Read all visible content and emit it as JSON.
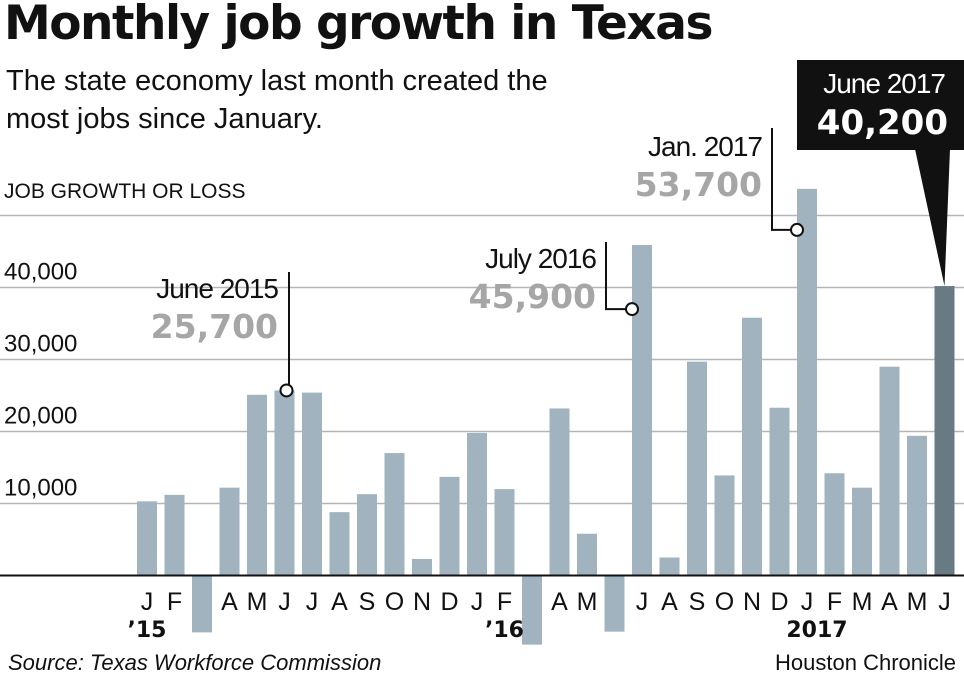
{
  "title": "Monthly job growth in Texas",
  "subtitle": "The state economy last month created the most jobs since January.",
  "source": "Source: Texas Workforce Commission",
  "credit": "Houston Chronicle",
  "chart_data": {
    "type": "bar",
    "ylabel": "JOB GROWTH OR LOSS",
    "ylim": [
      -10000,
      55000
    ],
    "yticks": [
      10000,
      20000,
      30000,
      40000
    ],
    "ytick_labels": [
      "10,000",
      "20,000",
      "30,000",
      "40,000"
    ],
    "grid": true,
    "categories": [
      "Jan 2015",
      "Feb 2015",
      "Mar 2015",
      "Apr 2015",
      "May 2015",
      "Jun 2015",
      "Jul 2015",
      "Aug 2015",
      "Sep 2015",
      "Oct 2015",
      "Nov 2015",
      "Dec 2015",
      "Jan 2016",
      "Feb 2016",
      "Mar 2016",
      "Apr 2016",
      "May 2016",
      "Jun 2016",
      "Jul 2016",
      "Aug 2016",
      "Sep 2016",
      "Oct 2016",
      "Nov 2016",
      "Dec 2016",
      "Jan 2017",
      "Feb 2017",
      "Mar 2017",
      "Apr 2017",
      "May 2017",
      "Jun 2017"
    ],
    "tick_labels": [
      "J",
      "F",
      "",
      "A",
      "M",
      "J",
      "J",
      "A",
      "S",
      "O",
      "N",
      "D",
      "J",
      "F",
      "",
      "A",
      "M",
      "",
      "J",
      "A",
      "S",
      "O",
      "N",
      "D",
      "J",
      "F",
      "M",
      "A",
      "M",
      "J"
    ],
    "year_labels": [
      {
        "index": 0,
        "label": "’15"
      },
      {
        "index": 13,
        "label": "’16"
      },
      {
        "index": 24,
        "label": "2017"
      }
    ],
    "values": [
      10300,
      11200,
      -7900,
      12200,
      25100,
      25700,
      25400,
      8800,
      11300,
      17000,
      2300,
      13700,
      19800,
      12000,
      -9600,
      23200,
      5800,
      -7800,
      45900,
      2500,
      29700,
      13900,
      35800,
      23300,
      53700,
      14200,
      12200,
      29000,
      19400,
      40200
    ],
    "colors": {
      "bar": "#a1b3be",
      "highlight": "#687a84",
      "grid": "#b5b5b5",
      "annotation_value": "#a6a6a6"
    },
    "annotations": [
      {
        "index": 5,
        "label": "June 2015",
        "value": "25,700"
      },
      {
        "index": 18,
        "label": "July 2016",
        "value": "45,900"
      },
      {
        "index": 24,
        "label": "Jan. 2017",
        "value": "53,700"
      },
      {
        "index": 29,
        "label": "June 2017",
        "value": "40,200",
        "highlight": true
      }
    ]
  }
}
